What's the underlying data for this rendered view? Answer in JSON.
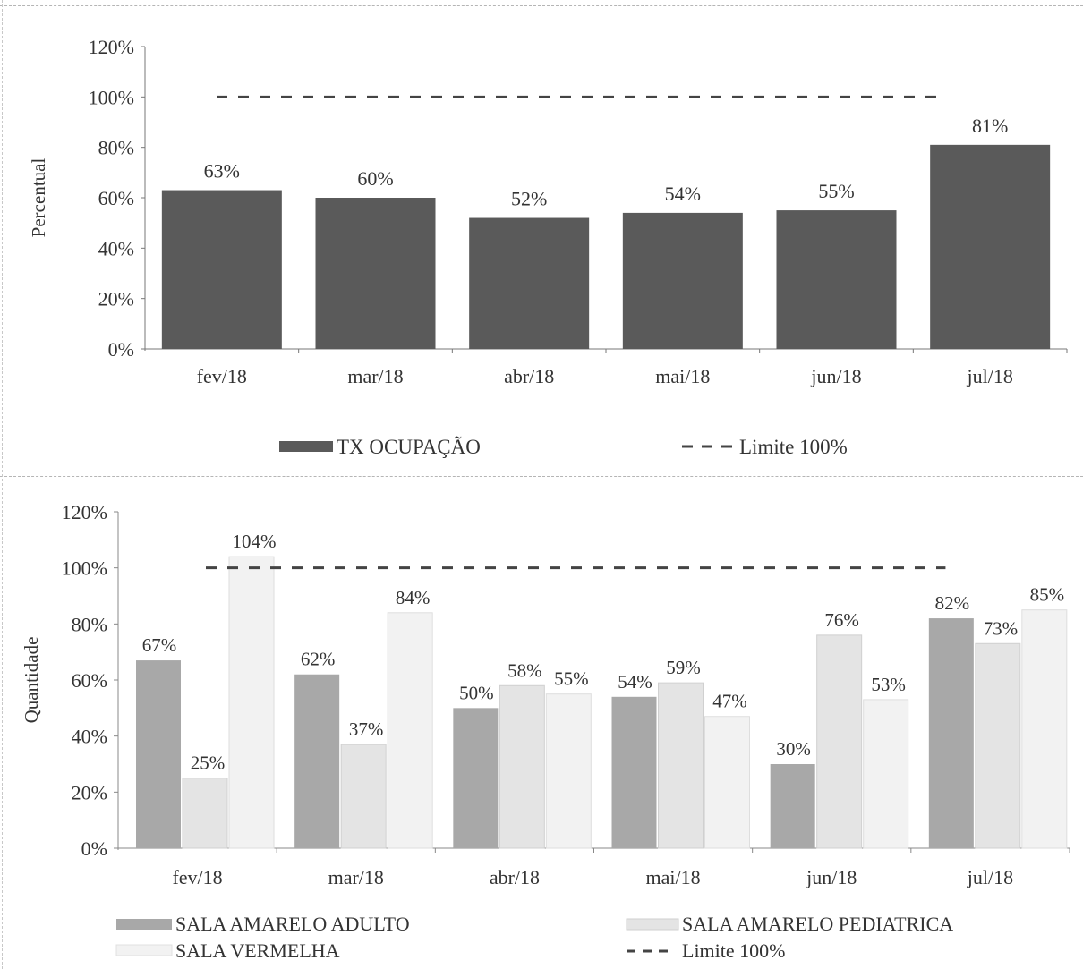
{
  "chart_data": [
    {
      "type": "bar",
      "title": "",
      "xlabel": "",
      "ylabel": "Percentual",
      "categories": [
        "fev/18",
        "mar/18",
        "abr/18",
        "mai/18",
        "jun/18",
        "jul/18"
      ],
      "series": [
        {
          "name": "TX OCUPAÇÃO",
          "type": "bar",
          "values": [
            63,
            60,
            52,
            54,
            55,
            81
          ],
          "color": "#5a5a5a"
        },
        {
          "name": "Limite 100%",
          "type": "line",
          "style": "dashed",
          "values": [
            100,
            100,
            100,
            100,
            100,
            100
          ],
          "color": "#444444"
        }
      ],
      "value_labels": [
        "63%",
        "60%",
        "52%",
        "54%",
        "55%",
        "81%"
      ],
      "yticks": [
        "0%",
        "20%",
        "40%",
        "60%",
        "80%",
        "100%",
        "120%"
      ],
      "ylim": [
        0,
        120
      ],
      "grid": false,
      "legend_position": "bottom"
    },
    {
      "type": "bar",
      "title": "",
      "xlabel": "",
      "ylabel": "Quantidade",
      "categories": [
        "fev/18",
        "mar/18",
        "abr/18",
        "mai/18",
        "jun/18",
        "jul/18"
      ],
      "series": [
        {
          "name": "SALA AMARELO ADULTO",
          "type": "bar",
          "values": [
            67,
            62,
            50,
            54,
            30,
            82
          ],
          "color": "#a8a8a8"
        },
        {
          "name": "SALA AMARELO PEDIATRICA",
          "type": "bar",
          "values": [
            25,
            37,
            58,
            59,
            76,
            73
          ],
          "color": "#e4e4e4"
        },
        {
          "name": "SALA VERMELHA",
          "type": "bar",
          "values": [
            104,
            84,
            55,
            47,
            53,
            85
          ],
          "color": "#f2f2f2"
        },
        {
          "name": "Limite 100%",
          "type": "line",
          "style": "dashed",
          "values": [
            100,
            100,
            100,
            100,
            100,
            100
          ],
          "color": "#444444"
        }
      ],
      "value_labels": [
        [
          "67%",
          "62%",
          "50%",
          "54%",
          "30%",
          "82%"
        ],
        [
          "25%",
          "37%",
          "58%",
          "59%",
          "76%",
          "73%"
        ],
        [
          "104%",
          "84%",
          "55%",
          "47%",
          "53%",
          "85%"
        ]
      ],
      "yticks": [
        "0%",
        "20%",
        "40%",
        "60%",
        "80%",
        "100%",
        "120%"
      ],
      "ylim": [
        0,
        120
      ],
      "grid": false,
      "legend_position": "bottom"
    }
  ]
}
